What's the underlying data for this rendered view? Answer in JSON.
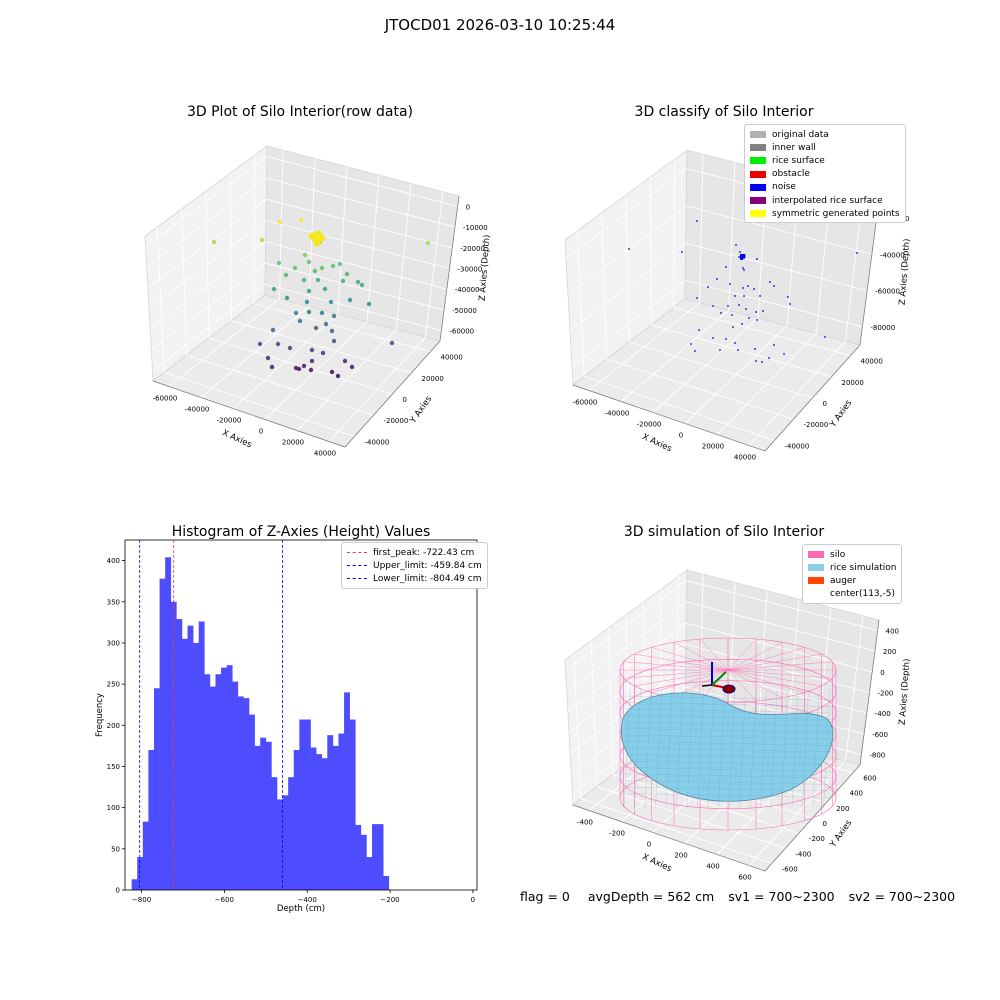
{
  "suptitle": "JTOCD01 2026-03-10 10:25:44",
  "footer": {
    "flag": "flag = 0",
    "avg_depth": "avgDepth = 562 cm",
    "sv1": "sv1 = 700~2300",
    "sv2": "sv2 = 700~2300"
  },
  "panel1": {
    "title": "3D Plot of Silo Interior(row data)",
    "xlabel": "X Axies",
    "ylabel": "Y Axies",
    "zlabel": "Z Axies (Depth)",
    "xticks": [
      "-60000",
      "-40000",
      "-20000",
      "0",
      "20000",
      "40000"
    ],
    "yticks": [
      "-40000",
      "-20000",
      "0",
      "20000",
      "40000"
    ],
    "zticks": [
      "0",
      "-10000",
      "-20000",
      "-30000",
      "-40000",
      "-50000",
      "-60000"
    ]
  },
  "panel2": {
    "title": "3D classify of Silo Interior",
    "xlabel": "X Axies",
    "ylabel": "Y Axies",
    "zlabel": "Z Axies (Depth)",
    "xticks": [
      "-60000",
      "-40000",
      "-20000",
      "0",
      "20000",
      "40000"
    ],
    "yticks": [
      "-40000",
      "-20000",
      "0",
      "20000",
      "40000"
    ],
    "zticks": [
      "-20000",
      "-40000",
      "-60000",
      "-80000"
    ],
    "legend": [
      {
        "label": "original data",
        "color": "#b0b0b0"
      },
      {
        "label": "inner wall",
        "color": "#808080"
      },
      {
        "label": "rice surface",
        "color": "#00ee00"
      },
      {
        "label": "obstacle",
        "color": "#ee0000"
      },
      {
        "label": "noise",
        "color": "#0000ee"
      },
      {
        "label": "interpolated rice surface",
        "color": "#800080"
      },
      {
        "label": "symmetric generated points",
        "color": "#ffff00"
      }
    ]
  },
  "panel4": {
    "title": "3D simulation of Silo Interior",
    "xlabel": "X Axies",
    "ylabel": "Y Axies",
    "zlabel": "Z Axies (Depth)",
    "xticks": [
      "-400",
      "-200",
      "0",
      "200",
      "400",
      "600"
    ],
    "yticks": [
      "-600",
      "-400",
      "-200",
      "0",
      "200",
      "400",
      "600"
    ],
    "zticks": [
      "400",
      "200",
      "0",
      "-200",
      "-400",
      "-600",
      "-800"
    ],
    "legend": [
      {
        "label": "silo",
        "color": "#ff69b4"
      },
      {
        "label": "rice simulation",
        "color": "#87ceeb"
      },
      {
        "label": "auger",
        "color": "#ff4500"
      },
      {
        "label": "center(113,-5)",
        "color": ""
      }
    ]
  },
  "chart_data": [
    {
      "type": "histogram",
      "title": "Histogram of Z-Axies (Height) Values",
      "xlabel": "Depth (cm)",
      "ylabel": "Frequency",
      "xlim": [
        -840,
        10
      ],
      "ylim": [
        0,
        425
      ],
      "xticks": [
        -800,
        -600,
        -400,
        -200,
        0
      ],
      "yticks": [
        0,
        50,
        100,
        150,
        200,
        250,
        300,
        350,
        400
      ],
      "bar_color": "#4d4dff",
      "bin_width": 13.5,
      "bin_start": -824,
      "counts": [
        13,
        40,
        83,
        170,
        245,
        378,
        404,
        350,
        329,
        305,
        321,
        300,
        326,
        262,
        247,
        262,
        270,
        273,
        253,
        235,
        233,
        213,
        175,
        185,
        180,
        137,
        110,
        115,
        137,
        170,
        207,
        207,
        173,
        165,
        160,
        188,
        175,
        190,
        240,
        207,
        79,
        67,
        40,
        80,
        80,
        17
      ],
      "vlines": [
        {
          "label": "first_peak: -722.43 cm",
          "x": -722.43,
          "color": "#ff3333"
        },
        {
          "label": "Upper_limit: -459.84 cm",
          "x": -459.84,
          "color": "#0000ff"
        },
        {
          "label": "Lower_limit: -804.49 cm",
          "x": -804.49,
          "color": "#0000ff"
        }
      ]
    }
  ]
}
